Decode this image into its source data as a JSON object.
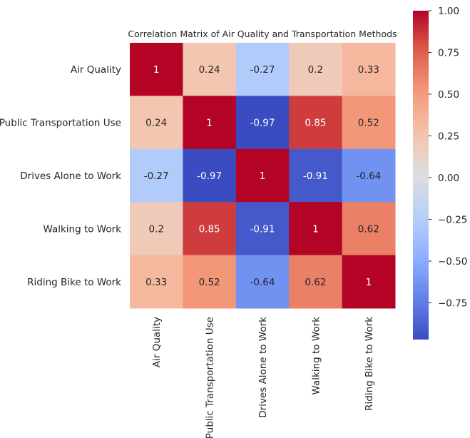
{
  "chart_data": {
    "type": "heatmap",
    "title": "Correlation Matrix of Air Quality and Transportation Methods",
    "row_labels": [
      "Air Quality",
      "Public Transportation Use",
      "Drives Alone to Work",
      "Walking to Work",
      "Riding Bike to Work"
    ],
    "col_labels": [
      "Air Quality",
      "Public Transportation Use",
      "Drives Alone to Work",
      "Walking to Work",
      "Riding Bike to Work"
    ],
    "values": [
      [
        1,
        0.24,
        -0.27,
        0.2,
        0.33
      ],
      [
        0.24,
        1,
        -0.97,
        0.85,
        0.52
      ],
      [
        -0.27,
        -0.97,
        1,
        -0.91,
        -0.64
      ],
      [
        0.2,
        0.85,
        -0.91,
        1,
        0.62
      ],
      [
        0.33,
        0.52,
        -0.64,
        0.62,
        1
      ]
    ],
    "value_labels": [
      [
        "1",
        "0.24",
        "-0.27",
        "0.2",
        "0.33"
      ],
      [
        "0.24",
        "1",
        "-0.97",
        "0.85",
        "0.52"
      ],
      [
        "-0.27",
        "-0.97",
        "1",
        "-0.91",
        "-0.64"
      ],
      [
        "0.2",
        "0.85",
        "-0.91",
        "1",
        "0.62"
      ],
      [
        "0.33",
        "0.52",
        "-0.64",
        "0.62",
        "1"
      ]
    ],
    "colormap": "coolwarm",
    "vmin": -0.97,
    "vmax": 1.0,
    "colorbar": {
      "ticks": [
        1.0,
        0.75,
        0.5,
        0.25,
        0.0,
        -0.25,
        -0.5,
        -0.75
      ],
      "tick_labels": [
        "1.00",
        "0.75",
        "0.50",
        "0.25",
        "0.00",
        "−0.25",
        "−0.50",
        "−0.75"
      ],
      "placement": "right"
    }
  }
}
